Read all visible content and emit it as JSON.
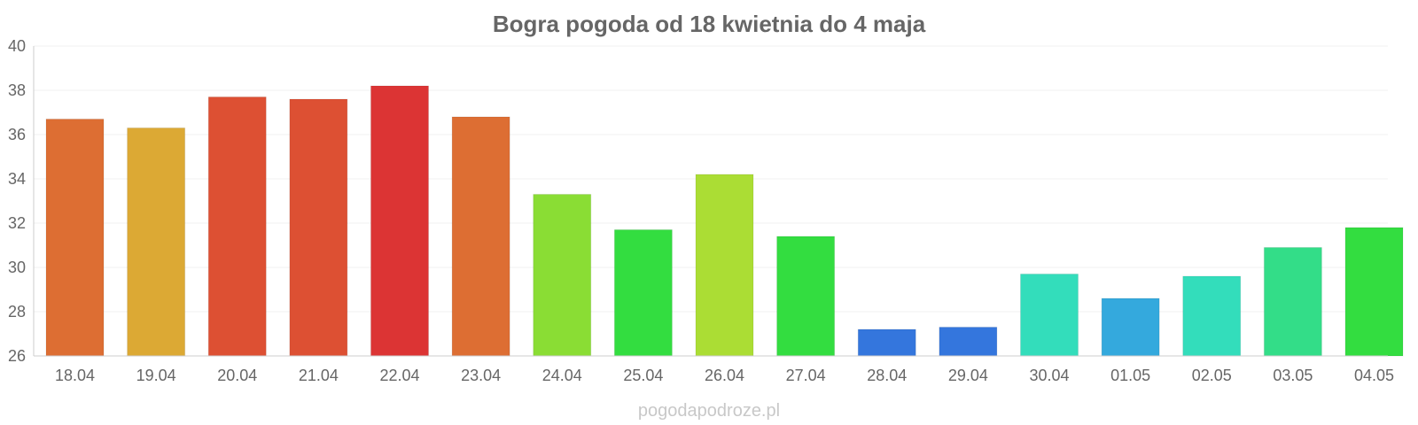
{
  "watermark": "pogodapodroze.pl",
  "chart_data": {
    "type": "bar",
    "title": "Bogra pogoda od 18 kwietnia do 4 maja",
    "xlabel": "",
    "ylabel": "",
    "ylim": [
      26,
      40
    ],
    "yticks": [
      26,
      28,
      30,
      32,
      34,
      36,
      38,
      40
    ],
    "grid": true,
    "legend": "none",
    "categories": [
      "18.04",
      "19.04",
      "20.04",
      "21.04",
      "22.04",
      "23.04",
      "24.04",
      "25.04",
      "26.04",
      "27.04",
      "28.04",
      "29.04",
      "30.04",
      "01.05",
      "02.05",
      "03.05",
      "04.05"
    ],
    "values": [
      36.7,
      36.3,
      37.7,
      37.6,
      38.2,
      36.8,
      33.3,
      31.7,
      34.2,
      31.4,
      27.2,
      27.3,
      29.7,
      28.6,
      29.6,
      30.9,
      31.8
    ],
    "colors": [
      "#dd6e33",
      "#dca934",
      "#dd5033",
      "#dd5033",
      "#dc3434",
      "#dd6e33",
      "#8add34",
      "#33dd40",
      "#abdd34",
      "#33dd40",
      "#3476dd",
      "#3476dd",
      "#33ddbb",
      "#34a9dd",
      "#33ddbb",
      "#33dd88",
      "#33dd40"
    ]
  }
}
